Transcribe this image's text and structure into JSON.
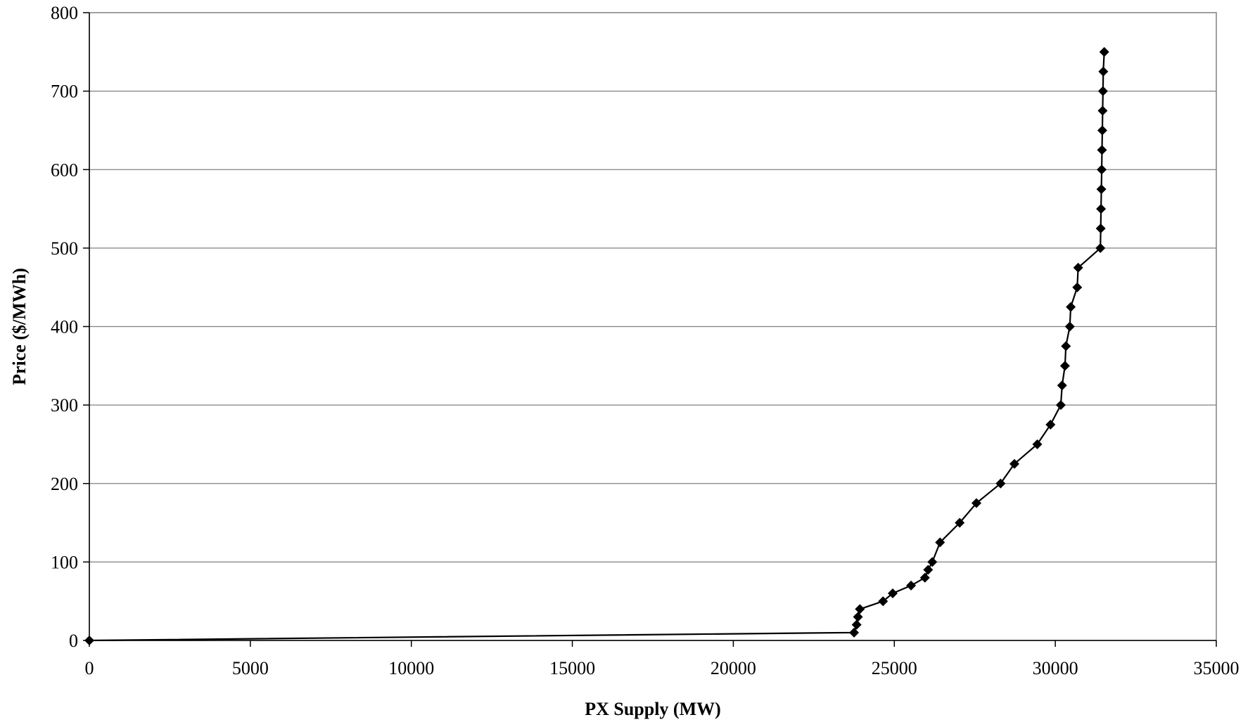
{
  "chart_data": {
    "type": "line",
    "title": "",
    "xlabel": "PX Supply (MW)",
    "ylabel": "Price ($/MWh)",
    "xlim": [
      0,
      35000
    ],
    "ylim": [
      0,
      800
    ],
    "xticks": [
      0,
      5000,
      10000,
      15000,
      20000,
      25000,
      30000,
      35000
    ],
    "yticks": [
      0,
      100,
      200,
      300,
      400,
      500,
      600,
      700,
      800
    ],
    "grid": "horizontal",
    "legend": "none",
    "colors": {
      "line": "#000000",
      "marker": "#000000",
      "grid": "#808080",
      "frame": "#808080"
    },
    "marker": "diamond",
    "series": [
      {
        "points": [
          [
            0,
            0
          ],
          [
            23750,
            10
          ],
          [
            23830,
            20
          ],
          [
            23870,
            30
          ],
          [
            23930,
            40
          ],
          [
            24650,
            50
          ],
          [
            24950,
            60
          ],
          [
            25520,
            70
          ],
          [
            25950,
            80
          ],
          [
            26050,
            90
          ],
          [
            26180,
            100
          ],
          [
            26420,
            125
          ],
          [
            27030,
            150
          ],
          [
            27550,
            175
          ],
          [
            28300,
            200
          ],
          [
            28730,
            225
          ],
          [
            29440,
            250
          ],
          [
            29850,
            275
          ],
          [
            30170,
            300
          ],
          [
            30210,
            325
          ],
          [
            30300,
            350
          ],
          [
            30330,
            375
          ],
          [
            30450,
            400
          ],
          [
            30480,
            425
          ],
          [
            30680,
            450
          ],
          [
            30710,
            475
          ],
          [
            31400,
            500
          ],
          [
            31410,
            525
          ],
          [
            31420,
            550
          ],
          [
            31430,
            575
          ],
          [
            31440,
            600
          ],
          [
            31450,
            625
          ],
          [
            31460,
            650
          ],
          [
            31470,
            675
          ],
          [
            31480,
            700
          ],
          [
            31490,
            725
          ],
          [
            31520,
            750
          ]
        ]
      }
    ]
  }
}
